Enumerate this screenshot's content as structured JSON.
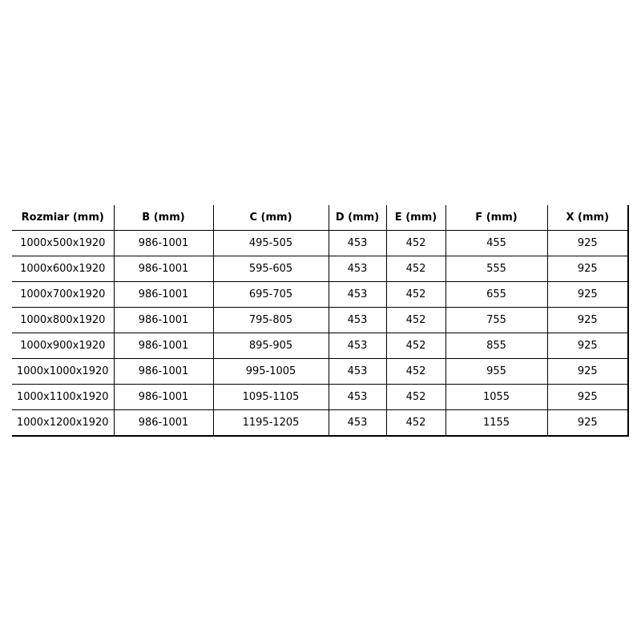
{
  "table": {
    "headers": [
      "Rozmiar (mm)",
      "B (mm)",
      "C (mm)",
      "D (mm)",
      "E (mm)",
      "F (mm)",
      "X (mm)"
    ],
    "rows": [
      [
        "1000x500x1920",
        "986-1001",
        "495-505",
        "453",
        "452",
        "455",
        "925"
      ],
      [
        "1000x600x1920",
        "986-1001",
        "595-605",
        "453",
        "452",
        "555",
        "925"
      ],
      [
        "1000x700x1920",
        "986-1001",
        "695-705",
        "453",
        "452",
        "655",
        "925"
      ],
      [
        "1000x800x1920",
        "986-1001",
        "795-805",
        "453",
        "452",
        "755",
        "925"
      ],
      [
        "1000x900x1920",
        "986-1001",
        "895-905",
        "453",
        "452",
        "855",
        "925"
      ],
      [
        "1000x1000x1920",
        "986-1001",
        "995-1005",
        "453",
        "452",
        "955",
        "925"
      ],
      [
        "1000x1100x1920",
        "986-1001",
        "1095-1105",
        "453",
        "452",
        "1055",
        "925"
      ],
      [
        "1000x1200x1920",
        "986-1001",
        "1195-1205",
        "453",
        "452",
        "1155",
        "925"
      ]
    ]
  }
}
